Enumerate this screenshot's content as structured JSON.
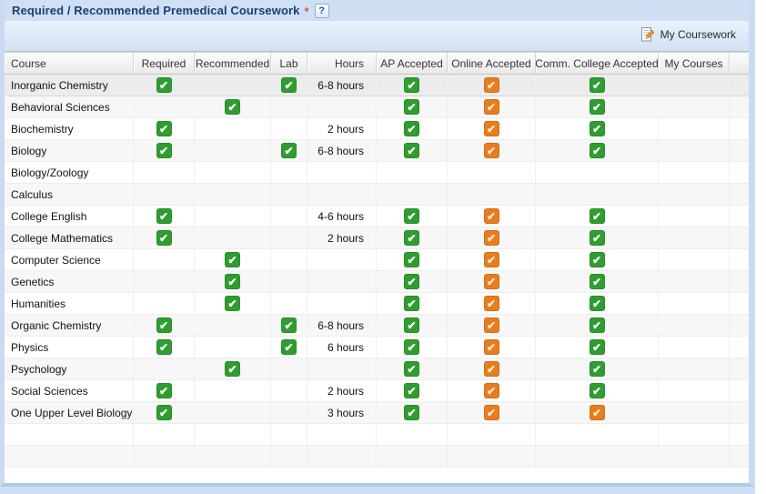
{
  "panel": {
    "title": "Required / Recommended Premedical Coursework",
    "required_marker": "*",
    "help_button": "?"
  },
  "toolbar": {
    "my_coursework": "My Coursework"
  },
  "colors": {
    "check_green": "#2f9d2f",
    "check_orange": "#e87d1c",
    "panel_border": "#c9dbf2",
    "titlebar_bg": "#cfe0f4"
  },
  "grid": {
    "columns": [
      {
        "key": "course",
        "label": "Course"
      },
      {
        "key": "required",
        "label": "Required"
      },
      {
        "key": "recommended",
        "label": "Recommended"
      },
      {
        "key": "lab",
        "label": "Lab"
      },
      {
        "key": "hours",
        "label": "Hours"
      },
      {
        "key": "ap",
        "label": "AP Accepted"
      },
      {
        "key": "online",
        "label": "Online Accepted"
      },
      {
        "key": "cc",
        "label": "Comm. College Accepted"
      },
      {
        "key": "my_courses",
        "label": "My Courses"
      }
    ],
    "rows": [
      {
        "course": "Inorganic Chemistry",
        "required": "green",
        "recommended": "",
        "lab": "green",
        "hours": "6-8 hours",
        "ap": "green",
        "online": "orange",
        "cc": "green",
        "my_courses": ""
      },
      {
        "course": "Behavioral Sciences",
        "required": "",
        "recommended": "green",
        "lab": "",
        "hours": "",
        "ap": "green",
        "online": "orange",
        "cc": "green",
        "my_courses": ""
      },
      {
        "course": "Biochemistry",
        "required": "green",
        "recommended": "",
        "lab": "",
        "hours": "2 hours",
        "ap": "green",
        "online": "orange",
        "cc": "green",
        "my_courses": ""
      },
      {
        "course": "Biology",
        "required": "green",
        "recommended": "",
        "lab": "green",
        "hours": "6-8 hours",
        "ap": "green",
        "online": "orange",
        "cc": "green",
        "my_courses": ""
      },
      {
        "course": "Biology/Zoology",
        "required": "",
        "recommended": "",
        "lab": "",
        "hours": "",
        "ap": "",
        "online": "",
        "cc": "",
        "my_courses": ""
      },
      {
        "course": "Calculus",
        "required": "",
        "recommended": "",
        "lab": "",
        "hours": "",
        "ap": "",
        "online": "",
        "cc": "",
        "my_courses": ""
      },
      {
        "course": "College English",
        "required": "green",
        "recommended": "",
        "lab": "",
        "hours": "4-6 hours",
        "ap": "green",
        "online": "orange",
        "cc": "green",
        "my_courses": ""
      },
      {
        "course": "College Mathematics",
        "required": "green",
        "recommended": "",
        "lab": "",
        "hours": "2 hours",
        "ap": "green",
        "online": "orange",
        "cc": "green",
        "my_courses": ""
      },
      {
        "course": "Computer Science",
        "required": "",
        "recommended": "green",
        "lab": "",
        "hours": "",
        "ap": "green",
        "online": "orange",
        "cc": "green",
        "my_courses": ""
      },
      {
        "course": "Genetics",
        "required": "",
        "recommended": "green",
        "lab": "",
        "hours": "",
        "ap": "green",
        "online": "orange",
        "cc": "green",
        "my_courses": ""
      },
      {
        "course": "Humanities",
        "required": "",
        "recommended": "green",
        "lab": "",
        "hours": "",
        "ap": "green",
        "online": "orange",
        "cc": "green",
        "my_courses": ""
      },
      {
        "course": "Organic Chemistry",
        "required": "green",
        "recommended": "",
        "lab": "green",
        "hours": "6-8 hours",
        "ap": "green",
        "online": "orange",
        "cc": "green",
        "my_courses": ""
      },
      {
        "course": "Physics",
        "required": "green",
        "recommended": "",
        "lab": "green",
        "hours": "6 hours",
        "ap": "green",
        "online": "orange",
        "cc": "green",
        "my_courses": ""
      },
      {
        "course": "Psychology",
        "required": "",
        "recommended": "green",
        "lab": "",
        "hours": "",
        "ap": "green",
        "online": "orange",
        "cc": "green",
        "my_courses": ""
      },
      {
        "course": "Social Sciences",
        "required": "green",
        "recommended": "",
        "lab": "",
        "hours": "2 hours",
        "ap": "green",
        "online": "orange",
        "cc": "green",
        "my_courses": ""
      },
      {
        "course": "One Upper Level Biology",
        "required": "green",
        "recommended": "",
        "lab": "",
        "hours": "3 hours",
        "ap": "green",
        "online": "orange",
        "cc": "orange",
        "my_courses": ""
      }
    ]
  }
}
